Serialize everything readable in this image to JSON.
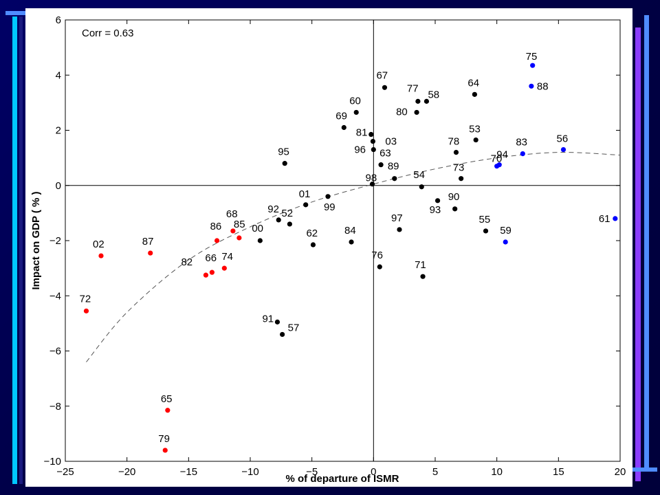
{
  "colors": {
    "background": "#000055",
    "accent_light_blue": "#4f8cff",
    "accent_cyan": "#00e5ff",
    "accent_purple": "#8a3cff",
    "point_red": "#ff0000",
    "point_black": "#000000",
    "point_blue": "#0000ff"
  },
  "chart_data": {
    "type": "scatter",
    "title": "",
    "annotation": "Corr = 0.63",
    "xlabel": "% of departure of ISMR",
    "ylabel": "Impact on GDP ( % )",
    "xlim": [
      -25,
      20
    ],
    "ylim": [
      -10,
      6
    ],
    "xticks": [
      -25,
      -20,
      -15,
      -10,
      -5,
      0,
      5,
      10,
      15,
      20
    ],
    "yticks": [
      -10,
      -8,
      -6,
      -4,
      -2,
      0,
      2,
      4,
      6
    ],
    "grid": false,
    "reference_lines": [
      "x=0",
      "y=0"
    ],
    "trend_curve": {
      "style": "dashed",
      "points": [
        [
          -23.3,
          -6.4
        ],
        [
          -20,
          -4.6
        ],
        [
          -15,
          -2.7
        ],
        [
          -10,
          -1.5
        ],
        [
          -5,
          -0.6
        ],
        [
          0,
          0.05
        ],
        [
          5,
          0.6
        ],
        [
          10,
          1.0
        ],
        [
          15,
          1.2
        ],
        [
          20,
          1.1
        ]
      ]
    },
    "points": [
      {
        "label": "72",
        "x": -23.3,
        "y": -4.55,
        "color": "red"
      },
      {
        "label": "02",
        "x": -22.1,
        "y": -2.55,
        "color": "red"
      },
      {
        "label": "87",
        "x": -18.1,
        "y": -2.45,
        "color": "red"
      },
      {
        "label": "65",
        "x": -16.7,
        "y": -8.15,
        "color": "red"
      },
      {
        "label": "79",
        "x": -16.9,
        "y": -9.6,
        "color": "red"
      },
      {
        "label": "82",
        "x": -13.6,
        "y": -3.25,
        "color": "red"
      },
      {
        "label": "66",
        "x": -13.1,
        "y": -3.15,
        "color": "red"
      },
      {
        "label": "74",
        "x": -12.1,
        "y": -3.0,
        "color": "red"
      },
      {
        "label": "86",
        "x": -12.7,
        "y": -2.0,
        "color": "red"
      },
      {
        "label": "68",
        "x": -11.4,
        "y": -1.65,
        "color": "red"
      },
      {
        "label": "85",
        "x": -10.9,
        "y": -1.9,
        "color": "red"
      },
      {
        "label": "00",
        "x": -9.2,
        "y": -2.0,
        "color": "black"
      },
      {
        "label": "92",
        "x": -7.7,
        "y": -1.25,
        "color": "black"
      },
      {
        "label": "52",
        "x": -6.8,
        "y": -1.4,
        "color": "black"
      },
      {
        "label": "91",
        "x": -7.8,
        "y": -4.95,
        "color": "black"
      },
      {
        "label": "57",
        "x": -7.4,
        "y": -5.4,
        "color": "black"
      },
      {
        "label": "95",
        "x": -7.2,
        "y": 0.8,
        "color": "black"
      },
      {
        "label": "01",
        "x": -5.5,
        "y": -0.7,
        "color": "black"
      },
      {
        "label": "62",
        "x": -4.9,
        "y": -2.15,
        "color": "black"
      },
      {
        "label": "99",
        "x": -3.7,
        "y": -0.4,
        "color": "black"
      },
      {
        "label": "84",
        "x": -1.8,
        "y": -2.05,
        "color": "black"
      },
      {
        "label": "69",
        "x": -2.4,
        "y": 2.1,
        "color": "black"
      },
      {
        "label": "60",
        "x": -1.4,
        "y": 2.65,
        "color": "black"
      },
      {
        "label": "81",
        "x": -0.2,
        "y": 1.85,
        "color": "black"
      },
      {
        "label": "03",
        "x": -0.05,
        "y": 1.6,
        "color": "black"
      },
      {
        "label": "96",
        "x": 0.0,
        "y": 1.3,
        "color": "black"
      },
      {
        "label": "98",
        "x": -0.1,
        "y": 0.05,
        "color": "black"
      },
      {
        "label": "63",
        "x": 0.6,
        "y": 0.75,
        "color": "black"
      },
      {
        "label": "67",
        "x": 0.9,
        "y": 3.55,
        "color": "black"
      },
      {
        "label": "76",
        "x": 0.5,
        "y": -2.95,
        "color": "black"
      },
      {
        "label": "89",
        "x": 1.7,
        "y": 0.25,
        "color": "black"
      },
      {
        "label": "97",
        "x": 2.1,
        "y": -1.6,
        "color": "black"
      },
      {
        "label": "80",
        "x": 3.5,
        "y": 2.65,
        "color": "black"
      },
      {
        "label": "77",
        "x": 3.6,
        "y": 3.05,
        "color": "black"
      },
      {
        "label": "58",
        "x": 4.3,
        "y": 3.05,
        "color": "black"
      },
      {
        "label": "54",
        "x": 3.9,
        "y": -0.05,
        "color": "black"
      },
      {
        "label": "71",
        "x": 4.0,
        "y": -3.3,
        "color": "black"
      },
      {
        "label": "93",
        "x": 5.2,
        "y": -0.55,
        "color": "black"
      },
      {
        "label": "78",
        "x": 6.7,
        "y": 1.2,
        "color": "black"
      },
      {
        "label": "90",
        "x": 6.6,
        "y": -0.85,
        "color": "black"
      },
      {
        "label": "73",
        "x": 7.1,
        "y": 0.25,
        "color": "black"
      },
      {
        "label": "64",
        "x": 8.2,
        "y": 3.3,
        "color": "black"
      },
      {
        "label": "53",
        "x": 8.3,
        "y": 1.65,
        "color": "black"
      },
      {
        "label": "55",
        "x": 9.1,
        "y": -1.65,
        "color": "black"
      },
      {
        "label": "94",
        "x": 10.2,
        "y": 0.75,
        "color": "blue"
      },
      {
        "label": "70",
        "x": 10.0,
        "y": 0.7,
        "color": "blue"
      },
      {
        "label": "59",
        "x": 10.7,
        "y": -2.05,
        "color": "blue"
      },
      {
        "label": "83",
        "x": 12.1,
        "y": 1.15,
        "color": "blue"
      },
      {
        "label": "75",
        "x": 12.9,
        "y": 4.35,
        "color": "blue"
      },
      {
        "label": "88",
        "x": 12.8,
        "y": 3.6,
        "color": "blue"
      },
      {
        "label": "56",
        "x": 15.4,
        "y": 1.3,
        "color": "blue"
      },
      {
        "label": "61",
        "x": 19.6,
        "y": -1.2,
        "color": "blue"
      }
    ]
  }
}
